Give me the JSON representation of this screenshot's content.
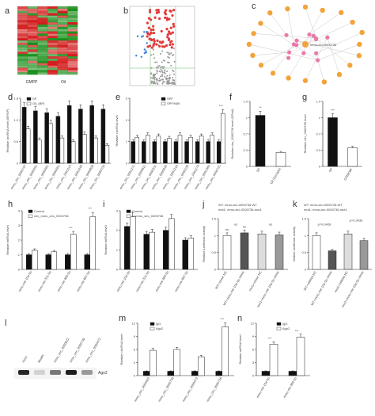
{
  "panel_labels": [
    "a",
    "b",
    "c",
    "d",
    "e",
    "f",
    "g",
    "h",
    "i",
    "j",
    "k",
    "l",
    "m",
    "n"
  ],
  "a": {
    "groups": [
      "GMPP",
      "Oil"
    ],
    "colors": {
      "high": "#d11a1a",
      "low": "#1a8f1a"
    }
  },
  "b": {
    "colors": {
      "up": "#e23b3b",
      "down": "#3b7fe2",
      "ns": "#999999"
    }
  },
  "c": {
    "center_nodes": [
      "mmu-circ-0000736"
    ],
    "colors": {
      "circ": "#f2a33a",
      "mirna": "#e97aa8"
    }
  },
  "d": {
    "ylabel": "Relative circRNA level (BP/SP)",
    "legend": [
      "SP",
      "OIL (BP)"
    ],
    "categories": [
      "mmu_circ_0000747",
      "mmu_circ_0000251",
      "mmu_circ_0000561",
      "mmu_circ_0000551",
      "mmu_circ_0001114",
      "mmu_circ_0001245",
      "mmu_circ_0000826",
      "mmu_circ_0000735"
    ],
    "ylim": [
      0,
      1.8
    ],
    "series": [
      {
        "name": "SP",
        "values": [
          1.55,
          1.45,
          1.4,
          1.3,
          1.6,
          1.5,
          1.6,
          1.5
        ],
        "color": "#111111"
      },
      {
        "name": "OIL (BP)",
        "values": [
          0.95,
          0.65,
          1.1,
          0.7,
          0.6,
          0.8,
          0.7,
          0.5
        ],
        "color": "#ffffff"
      }
    ]
  },
  "e": {
    "ylabel": "Relative circRNA level",
    "legend": [
      "SPF",
      "SPF/KBK"
    ],
    "categories": [
      "mmu_circ_0001271",
      "mmu_circ_0000611",
      "mmu_circ_0000231",
      "mmu_circ_0000543",
      "mmu_circ_0001216",
      "mmu_circ_0000128",
      "mmu_circ_0001174",
      "mmu_circ_0001369",
      "mmu_circ_0000721"
    ],
    "ylim": [
      0,
      3
    ],
    "series": [
      {
        "name": "SPF",
        "values": [
          1,
          1,
          1,
          1,
          1,
          1,
          1,
          1,
          1
        ],
        "color": "#111111"
      },
      {
        "name": "SPF/KBK",
        "values": [
          1.2,
          1.3,
          1.25,
          1.15,
          1.3,
          1.2,
          1.25,
          1.3,
          2.3
        ],
        "color": "#ffffff"
      }
    ],
    "sig": "***"
  },
  "f": {
    "ylabel": "Relative circ_0000736 level (SP/oil)",
    "categories": [
      "SP",
      "Oil (Gonads)"
    ],
    "values": [
      1.1,
      0.3
    ],
    "ylim": [
      0,
      1.4
    ],
    "sig": "**"
  },
  "g": {
    "ylabel": "Relative circ_0000736 level",
    "categories": [
      "SP",
      "CFB/KBK"
    ],
    "values": [
      1.05,
      0.4
    ],
    "ylim": [
      0,
      1.4
    ],
    "sig": "***"
  },
  "h": {
    "ylabel": "Relative miRNA level",
    "legend": [
      "Control",
      "circ_mmu_circ_0000736"
    ],
    "categories": [
      "mmu-mir-10a-5p",
      "mmu-mir-331-5p",
      "mmu-mir-485-5p",
      "mmu-mir-667-5p"
    ],
    "ylim": [
      0,
      4
    ],
    "series": [
      {
        "name": "Control",
        "values": [
          1,
          1,
          1,
          1
        ],
        "color": "#111111"
      },
      {
        "name": "circ_mmu_circ_0000736",
        "values": [
          1.3,
          1.2,
          2.4,
          3.6
        ],
        "color": "#ffffff"
      }
    ],
    "sig": [
      "",
      "",
      "***",
      "***"
    ]
  },
  "i": {
    "ylabel": "Relative miRNA level",
    "legend": [
      "Control",
      "si-mmu_circ_0000736"
    ],
    "categories": [
      "mmu-mir-10a-5p",
      "mmu-mir-331-5p",
      "mmu-mir-485-5p",
      "mmu-mir-667-5p"
    ],
    "ylim": [
      0,
      3
    ],
    "series": [
      {
        "name": "Control",
        "values": [
          2.2,
          1.8,
          2.0,
          1.5
        ],
        "color": "#111111"
      },
      {
        "name": "si-mmu_circ_0000736",
        "values": [
          2.7,
          1.9,
          2.6,
          1.6
        ],
        "color": "#ffffff"
      }
    ]
  },
  "j": {
    "title_wt": "WT: mmu-circ-0000736-WT",
    "title_mut": "mut1: mmu-circ-0000736-mut1",
    "ylabel": "Relative luciferase activity",
    "categories": [
      "WT+mimic NC",
      "WT+mmu-mir-10a-5p mimic",
      "mut1+mimic NC",
      "mut1+mmu-mir-10a-5p mimic"
    ],
    "values": [
      1.0,
      1.08,
      1.05,
      1.02
    ],
    "ylim": [
      0,
      1.5
    ],
    "sig": [
      "ns",
      "ns"
    ]
  },
  "k": {
    "title_wt": "WT: mmu-circ-0000736-WT",
    "title_mut": "mut1: mmu-circ-0000736-mut1",
    "ylabel": "relative luciferase activity",
    "categories": [
      "WT+miRNA NC",
      "WT+mmu-mir-10a-5p mimic",
      "mut1+miRNA NC",
      "mut1+mmu-mir-10a-5p mimic"
    ],
    "values": [
      1.0,
      0.55,
      1.05,
      0.85
    ],
    "ylim": [
      0,
      1.5
    ],
    "pvalues": [
      "p=0.0428",
      "p=0.3435"
    ]
  },
  "l": {
    "lanes": [
      "Input",
      "Beads",
      "mmu_circ_0000622",
      "mmu_circ_0000736",
      "mmu_circ_0000472"
    ],
    "band": "Ago2"
  },
  "m": {
    "ylabel": "Relative circRNA level",
    "legend": [
      "IgG",
      "Ago2"
    ],
    "categories": [
      "mmu_circ_0000622",
      "mmu_circ_0000736",
      "mmu_circ_0000472",
      "mmu_circ_0000736"
    ],
    "ylim": [
      0,
      12
    ],
    "series": [
      {
        "name": "IgG",
        "values": [
          1,
          1,
          1,
          1
        ],
        "color": "#111111"
      },
      {
        "name": "Ago2",
        "values": [
          5.8,
          6.0,
          4.3,
          11.2
        ],
        "color": "#ffffff"
      }
    ],
    "sig": [
      "",
      "",
      "",
      "***"
    ]
  },
  "n": {
    "ylabel": "Relative miRNA level",
    "legend": [
      "IgG",
      "Ago2"
    ],
    "categories": [
      "mmu-mir-10a-5p",
      "mmu-mir-485-5p"
    ],
    "ylim": [
      0,
      12
    ],
    "series": [
      {
        "name": "IgG",
        "values": [
          1,
          1
        ],
        "color": "#111111"
      },
      {
        "name": "Ago2",
        "values": [
          7.2,
          8.8
        ],
        "color": "#ffffff"
      }
    ],
    "sig": [
      "***",
      "***"
    ]
  }
}
